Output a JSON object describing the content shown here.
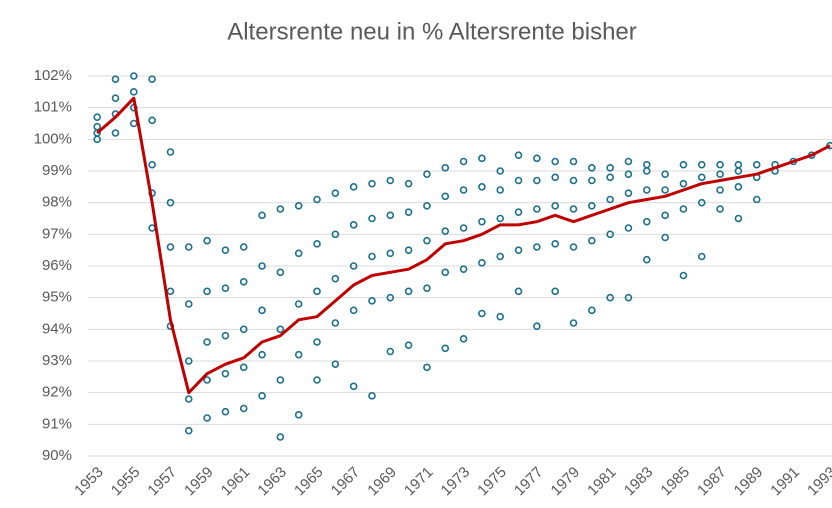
{
  "chart_data": {
    "type": "scatter",
    "title": "Altersrente neu in % Altersrente bisher",
    "xlim": [
      1952.5,
      1993
    ],
    "xticks": [
      1953,
      1955,
      1957,
      1959,
      1961,
      1963,
      1965,
      1967,
      1969,
      1971,
      1973,
      1975,
      1977,
      1979,
      1981,
      1983,
      1985,
      1987,
      1989,
      1991,
      1993
    ],
    "ylim": [
      90,
      102
    ],
    "yticks": [
      {
        "value": 90,
        "label": "90%"
      },
      {
        "value": 91,
        "label": "91%"
      },
      {
        "value": 92,
        "label": "92%"
      },
      {
        "value": 93,
        "label": "93%"
      },
      {
        "value": 94,
        "label": "94%"
      },
      {
        "value": 95,
        "label": "95%"
      },
      {
        "value": 96,
        "label": "96%"
      },
      {
        "value": 97,
        "label": "97%"
      },
      {
        "value": 98,
        "label": "98%"
      },
      {
        "value": 99,
        "label": "99%"
      },
      {
        "value": 100,
        "label": "100%"
      },
      {
        "value": 101,
        "label": "101%"
      },
      {
        "value": 102,
        "label": "102%"
      }
    ],
    "grid": true,
    "series": [
      {
        "type": "scatter",
        "color": "#1d6f8e",
        "x": [
          1953,
          1953,
          1953,
          1953,
          1954,
          1954,
          1954,
          1954,
          1955,
          1955,
          1955,
          1955,
          1956,
          1956,
          1956,
          1956,
          1956,
          1957,
          1957,
          1957,
          1957,
          1957,
          1958,
          1958,
          1958,
          1958,
          1958,
          1959,
          1959,
          1959,
          1959,
          1959,
          1960,
          1960,
          1960,
          1960,
          1960,
          1961,
          1961,
          1961,
          1961,
          1961,
          1962,
          1962,
          1962,
          1962,
          1962,
          1963,
          1963,
          1963,
          1963,
          1963,
          1964,
          1964,
          1964,
          1964,
          1964,
          1965,
          1965,
          1965,
          1965,
          1965,
          1966,
          1966,
          1966,
          1966,
          1966,
          1967,
          1967,
          1967,
          1967,
          1967,
          1968,
          1968,
          1968,
          1968,
          1968,
          1969,
          1969,
          1969,
          1969,
          1969,
          1970,
          1970,
          1970,
          1970,
          1970,
          1971,
          1971,
          1971,
          1971,
          1971,
          1972,
          1972,
          1972,
          1972,
          1972,
          1973,
          1973,
          1973,
          1973,
          1973,
          1974,
          1974,
          1974,
          1974,
          1974,
          1975,
          1975,
          1975,
          1975,
          1975,
          1976,
          1976,
          1976,
          1976,
          1976,
          1977,
          1977,
          1977,
          1977,
          1977,
          1978,
          1978,
          1978,
          1978,
          1978,
          1979,
          1979,
          1979,
          1979,
          1979,
          1980,
          1980,
          1980,
          1980,
          1980,
          1981,
          1981,
          1981,
          1981,
          1981,
          1982,
          1982,
          1982,
          1982,
          1982,
          1983,
          1983,
          1983,
          1983,
          1983,
          1984,
          1984,
          1984,
          1984,
          1985,
          1985,
          1985,
          1985,
          1986,
          1986,
          1986,
          1986,
          1987,
          1987,
          1987,
          1987,
          1988,
          1988,
          1988,
          1988,
          1989,
          1989,
          1989,
          1990,
          1990,
          1991,
          1992,
          1993
        ],
        "values": [
          100.0,
          100.2,
          100.4,
          100.7,
          100.2,
          100.8,
          101.3,
          101.9,
          100.5,
          101.0,
          101.5,
          102.0,
          97.2,
          98.3,
          99.2,
          100.6,
          101.9,
          94.1,
          95.2,
          96.6,
          98.0,
          99.6,
          90.8,
          91.8,
          93.0,
          94.8,
          96.6,
          91.2,
          92.4,
          93.6,
          95.2,
          96.8,
          91.4,
          92.6,
          93.8,
          95.3,
          96.5,
          91.5,
          92.8,
          94.0,
          95.5,
          96.6,
          91.9,
          93.2,
          94.6,
          96.0,
          97.6,
          90.6,
          92.4,
          94.0,
          95.8,
          97.8,
          91.3,
          93.2,
          94.8,
          96.4,
          97.9,
          92.4,
          93.6,
          95.2,
          96.7,
          98.1,
          92.9,
          94.2,
          95.6,
          97.0,
          98.3,
          92.2,
          94.6,
          96.0,
          97.3,
          98.5,
          91.9,
          94.9,
          96.3,
          97.5,
          98.6,
          93.3,
          95.0,
          96.4,
          97.6,
          98.7,
          93.5,
          95.2,
          96.5,
          97.7,
          98.6,
          92.8,
          95.3,
          96.8,
          97.9,
          98.9,
          93.4,
          95.8,
          97.1,
          98.2,
          99.1,
          93.7,
          95.9,
          97.2,
          98.4,
          99.3,
          94.5,
          96.1,
          97.4,
          98.5,
          99.4,
          94.4,
          96.3,
          97.5,
          98.4,
          99.0,
          95.2,
          96.5,
          97.7,
          98.7,
          99.5,
          94.1,
          96.6,
          97.8,
          98.7,
          99.4,
          95.2,
          96.7,
          97.9,
          98.8,
          99.3,
          94.2,
          96.6,
          97.8,
          98.7,
          99.3,
          94.6,
          96.8,
          97.9,
          98.7,
          99.1,
          95.0,
          97.0,
          98.1,
          98.8,
          99.1,
          95.0,
          97.2,
          98.3,
          98.9,
          99.3,
          96.2,
          97.4,
          98.4,
          99.0,
          99.2,
          96.9,
          97.6,
          98.4,
          98.9,
          95.7,
          97.8,
          98.6,
          99.2,
          96.3,
          98.0,
          98.8,
          99.2,
          97.8,
          98.4,
          98.9,
          99.2,
          97.5,
          98.5,
          99.0,
          99.2,
          98.1,
          98.8,
          99.2,
          99.0,
          99.2,
          99.3,
          99.5,
          99.8
        ]
      },
      {
        "type": "line",
        "color": "#c00000",
        "x": [
          1953,
          1954,
          1955,
          1956,
          1957,
          1958,
          1959,
          1960,
          1961,
          1962,
          1963,
          1964,
          1965,
          1966,
          1967,
          1968,
          1969,
          1970,
          1971,
          1972,
          1973,
          1974,
          1975,
          1976,
          1977,
          1978,
          1979,
          1980,
          1981,
          1982,
          1983,
          1984,
          1985,
          1986,
          1987,
          1988,
          1989,
          1990,
          1991,
          1992,
          1993
        ],
        "values": [
          100.2,
          100.7,
          101.3,
          98.0,
          94.3,
          92.0,
          92.6,
          92.9,
          93.1,
          93.6,
          93.8,
          94.3,
          94.4,
          94.9,
          95.4,
          95.7,
          95.8,
          95.9,
          96.2,
          96.7,
          96.8,
          97.0,
          97.3,
          97.3,
          97.4,
          97.6,
          97.4,
          97.6,
          97.8,
          98.0,
          98.1,
          98.2,
          98.4,
          98.6,
          98.7,
          98.8,
          98.9,
          99.1,
          99.3,
          99.5,
          99.8
        ]
      }
    ]
  }
}
